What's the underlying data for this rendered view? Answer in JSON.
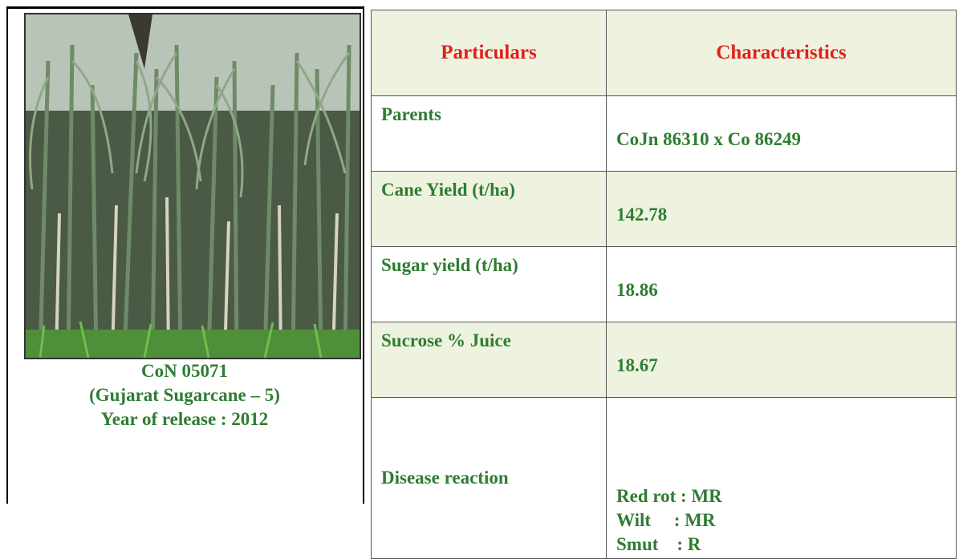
{
  "variety": {
    "caption": [
      "CoN 05071",
      "(Gujarat Sugarcane – 5)",
      "Year of release : 2012"
    ]
  },
  "table": {
    "header": [
      "Particulars",
      "Characteristics"
    ],
    "rows": [
      [
        "Parents",
        "CoJn 86310 x Co 86249"
      ],
      [
        "Cane Yield (t/ha)",
        "142.78"
      ],
      [
        "Sugar yield (t/ha)",
        "18.86"
      ],
      [
        "Sucrose % Juice",
        "18.67"
      ],
      [
        "Disease reaction",
        [
          "Red rot : MR",
          "Wilt     : MR",
          "Smut    : R"
        ]
      ]
    ]
  }
}
